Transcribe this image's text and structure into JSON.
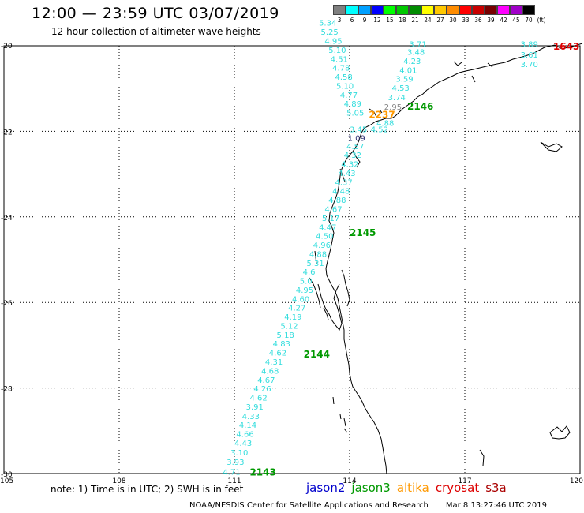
{
  "header": {
    "title": "12:00 — 23:59 UTC 03/07/2019",
    "subtitle": "12 hour collection of altimeter wave heights"
  },
  "legend": {
    "unit": "(ft)",
    "bins": [
      {
        "label": "3",
        "color": "#7f7f7f"
      },
      {
        "label": "6",
        "color": "#00ffff"
      },
      {
        "label": "9",
        "color": "#00a0ff"
      },
      {
        "label": "12",
        "color": "#0000ff"
      },
      {
        "label": "15",
        "color": "#00ff00"
      },
      {
        "label": "18",
        "color": "#00c800"
      },
      {
        "label": "21",
        "color": "#008c00"
      },
      {
        "label": "24",
        "color": "#ffff00"
      },
      {
        "label": "27",
        "color": "#ffc800"
      },
      {
        "label": "30",
        "color": "#ff8c00"
      },
      {
        "label": "33",
        "color": "#ff0000"
      },
      {
        "label": "36",
        "color": "#c80000"
      },
      {
        "label": "39",
        "color": "#780000"
      },
      {
        "label": "42",
        "color": "#ff00ff"
      },
      {
        "label": "45",
        "color": "#a000c8"
      },
      {
        "label": "70",
        "color": "#000000"
      }
    ]
  },
  "axes": {
    "lon_min": 105,
    "lon_max": 120,
    "lat_min": -30,
    "lat_max": -20,
    "lon_ticks": [
      "105",
      "108",
      "111",
      "114",
      "117",
      "120"
    ],
    "lat_ticks": [
      "-20",
      "-22",
      "-24",
      "-26",
      "-28",
      "-30"
    ]
  },
  "colors": {
    "swh_low": "#33dddd",
    "jason2": "#0000cc",
    "jason3": "#009900",
    "altika": "#ff9900",
    "cryosat": "#dd0000",
    "s3a": "#aa0000",
    "grey_value": "#888888",
    "navy_value": "#333377"
  },
  "passes": [
    {
      "time": "2143",
      "lon": 111.4,
      "lat": -29.95,
      "sat": "jason3"
    },
    {
      "time": "2144",
      "lon": 112.8,
      "lat": -27.2,
      "sat": "jason3"
    },
    {
      "time": "2145",
      "lon": 114.0,
      "lat": -24.35,
      "sat": "jason3"
    },
    {
      "time": "2146",
      "lon": 115.5,
      "lat": -21.4,
      "sat": "jason3"
    },
    {
      "time": "2237",
      "lon": 114.5,
      "lat": -21.6,
      "sat": "altika"
    },
    {
      "time": "1643",
      "lon": 119.3,
      "lat": -20.0,
      "sat": "cryosat"
    }
  ],
  "track_values": [
    {
      "lon": 110.7,
      "lat": -29.95,
      "v": "4.71",
      "c": "swh_low"
    },
    {
      "lon": 110.8,
      "lat": -29.72,
      "v": "3.93",
      "c": "swh_low"
    },
    {
      "lon": 110.9,
      "lat": -29.5,
      "v": "3.10",
      "c": "swh_low"
    },
    {
      "lon": 111.0,
      "lat": -29.28,
      "v": "4.43",
      "c": "swh_low"
    },
    {
      "lon": 111.05,
      "lat": -29.07,
      "v": "4.66",
      "c": "swh_low"
    },
    {
      "lon": 111.12,
      "lat": -28.86,
      "v": "4.14",
      "c": "swh_low"
    },
    {
      "lon": 111.2,
      "lat": -28.65,
      "v": "4.33",
      "c": "swh_low"
    },
    {
      "lon": 111.3,
      "lat": -28.43,
      "v": "3.91",
      "c": "swh_low"
    },
    {
      "lon": 111.4,
      "lat": -28.22,
      "v": "4.62",
      "c": "swh_low"
    },
    {
      "lon": 111.5,
      "lat": -28.01,
      "v": "4.26",
      "c": "swh_low"
    },
    {
      "lon": 111.6,
      "lat": -27.8,
      "v": "4.67",
      "c": "swh_low"
    },
    {
      "lon": 111.7,
      "lat": -27.59,
      "v": "4.68",
      "c": "swh_low"
    },
    {
      "lon": 111.8,
      "lat": -27.38,
      "v": "4.31",
      "c": "swh_low"
    },
    {
      "lon": 111.9,
      "lat": -27.17,
      "v": "4.62",
      "c": "swh_low"
    },
    {
      "lon": 112.0,
      "lat": -26.96,
      "v": "4.83",
      "c": "swh_low"
    },
    {
      "lon": 112.1,
      "lat": -26.75,
      "v": "5.18",
      "c": "swh_low"
    },
    {
      "lon": 112.2,
      "lat": -26.54,
      "v": "5.12",
      "c": "swh_low"
    },
    {
      "lon": 112.3,
      "lat": -26.33,
      "v": "4.19",
      "c": "swh_low"
    },
    {
      "lon": 112.4,
      "lat": -26.12,
      "v": "4.27",
      "c": "swh_low"
    },
    {
      "lon": 112.5,
      "lat": -25.91,
      "v": "4.60",
      "c": "swh_low"
    },
    {
      "lon": 112.6,
      "lat": -25.7,
      "v": "4.95",
      "c": "swh_low"
    },
    {
      "lon": 112.7,
      "lat": -25.49,
      "v": "5.0",
      "c": "swh_low"
    },
    {
      "lon": 112.78,
      "lat": -25.28,
      "v": "4.6",
      "c": "swh_low"
    },
    {
      "lon": 112.88,
      "lat": -25.07,
      "v": "5.31",
      "c": "swh_low"
    },
    {
      "lon": 112.95,
      "lat": -24.86,
      "v": "4.88",
      "c": "swh_low"
    },
    {
      "lon": 113.05,
      "lat": -24.65,
      "v": "4.96",
      "c": "swh_low"
    },
    {
      "lon": 113.12,
      "lat": -24.44,
      "v": "4.50",
      "c": "swh_low"
    },
    {
      "lon": 113.2,
      "lat": -24.23,
      "v": "4.47",
      "c": "swh_low"
    },
    {
      "lon": 113.28,
      "lat": -24.02,
      "v": "5.17",
      "c": "swh_low"
    },
    {
      "lon": 113.35,
      "lat": -23.81,
      "v": "4.67",
      "c": "swh_low"
    },
    {
      "lon": 113.45,
      "lat": -23.6,
      "v": "4.88",
      "c": "swh_low"
    },
    {
      "lon": 113.55,
      "lat": -23.39,
      "v": "4.48",
      "c": "swh_low"
    },
    {
      "lon": 113.62,
      "lat": -23.18,
      "v": "4.37",
      "c": "swh_low"
    },
    {
      "lon": 113.7,
      "lat": -22.97,
      "v": "4.43",
      "c": "swh_low"
    },
    {
      "lon": 113.78,
      "lat": -22.76,
      "v": "4.32",
      "c": "swh_low"
    },
    {
      "lon": 113.85,
      "lat": -22.55,
      "v": "4.32",
      "c": "swh_low"
    },
    {
      "lon": 113.92,
      "lat": -22.34,
      "v": "4.57",
      "c": "swh_low"
    },
    {
      "lon": 113.95,
      "lat": -22.15,
      "v": "1.09",
      "c": "navy_value"
    },
    {
      "lon": 114.0,
      "lat": -21.95,
      "v": "3.45",
      "c": "swh_low"
    },
    {
      "lon": 113.92,
      "lat": -21.56,
      "v": "5.05",
      "c": "swh_low"
    },
    {
      "lon": 113.85,
      "lat": -21.35,
      "v": "4.89",
      "c": "swh_low"
    },
    {
      "lon": 113.75,
      "lat": -21.14,
      "v": "4.77",
      "c": "swh_low"
    },
    {
      "lon": 113.65,
      "lat": -20.93,
      "v": "5.10",
      "c": "swh_low"
    },
    {
      "lon": 113.62,
      "lat": -20.72,
      "v": "4.58",
      "c": "swh_low"
    },
    {
      "lon": 113.55,
      "lat": -20.51,
      "v": "4.78",
      "c": "swh_low"
    },
    {
      "lon": 113.5,
      "lat": -20.3,
      "v": "4.51",
      "c": "swh_low"
    },
    {
      "lon": 113.45,
      "lat": -20.09,
      "v": "5.10",
      "c": "swh_low"
    },
    {
      "lon": 113.35,
      "lat": -19.88,
      "v": "4.95",
      "c": "swh_low"
    },
    {
      "lon": 113.25,
      "lat": -19.67,
      "v": "5.25",
      "c": "swh_low"
    },
    {
      "lon": 113.2,
      "lat": -19.46,
      "v": "5.34",
      "c": "swh_low"
    },
    {
      "lon": 114.55,
      "lat": -21.95,
      "v": "4.52",
      "c": "swh_low"
    },
    {
      "lon": 114.7,
      "lat": -21.8,
      "v": "4.88",
      "c": "swh_low"
    },
    {
      "lon": 114.9,
      "lat": -21.42,
      "v": "2.95",
      "c": "grey_value"
    },
    {
      "lon": 115.0,
      "lat": -21.2,
      "v": "3.74",
      "c": "swh_low"
    },
    {
      "lon": 115.1,
      "lat": -20.98,
      "v": "4.53",
      "c": "swh_low"
    },
    {
      "lon": 115.2,
      "lat": -20.77,
      "v": "3.59",
      "c": "swh_low"
    },
    {
      "lon": 115.3,
      "lat": -20.56,
      "v": "4.01",
      "c": "swh_low"
    },
    {
      "lon": 115.4,
      "lat": -20.35,
      "v": "4.23",
      "c": "swh_low"
    },
    {
      "lon": 115.5,
      "lat": -20.14,
      "v": "3.48",
      "c": "swh_low"
    },
    {
      "lon": 115.55,
      "lat": -19.95,
      "v": "3.71",
      "c": "swh_low"
    },
    {
      "lon": 118.45,
      "lat": -19.95,
      "v": "3.89",
      "c": "swh_low"
    },
    {
      "lon": 118.45,
      "lat": -20.2,
      "v": "3.61",
      "c": "swh_low"
    },
    {
      "lon": 118.45,
      "lat": -20.42,
      "v": "3.70",
      "c": "swh_low"
    }
  ],
  "satellites": [
    {
      "label": "jason2",
      "color_key": "jason2"
    },
    {
      "label": "jason3",
      "color_key": "jason3"
    },
    {
      "label": "altika",
      "color_key": "altika"
    },
    {
      "label": "cryosat",
      "color_key": "cryosat"
    },
    {
      "label": "s3a",
      "color_key": "s3a"
    }
  ],
  "footer": {
    "note": "note: 1) Time is in UTC; 2) SWH is in feet",
    "credit": "NOAA/NESDIS Center for Satellite Applications and Research",
    "timestamp": "Mar  8 13:27:46 UTC 2019"
  }
}
